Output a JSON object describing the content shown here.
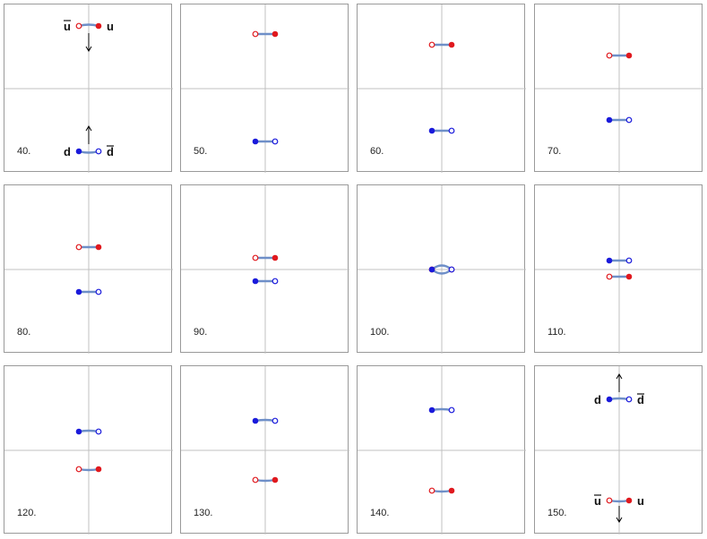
{
  "panels": [
    {
      "frame": "40.",
      "u_y": -70,
      "d_y": 70,
      "show_flavor_labels": true,
      "arrows": "in"
    },
    {
      "frame": "50.",
      "u_y": -61,
      "d_y": 59
    },
    {
      "frame": "60.",
      "u_y": -49,
      "d_y": 47
    },
    {
      "frame": "70.",
      "u_y": -37,
      "d_y": 35
    },
    {
      "frame": "80.",
      "u_y": -25,
      "d_y": 25
    },
    {
      "frame": "90.",
      "u_y": -13,
      "d_y": 13
    },
    {
      "frame": "100.",
      "u_y": 0,
      "d_y": 0,
      "merged": true
    },
    {
      "frame": "110.",
      "u_y": 8,
      "d_y": -10
    },
    {
      "frame": "120.",
      "u_y": 21,
      "d_y": -21
    },
    {
      "frame": "130.",
      "u_y": 33,
      "d_y": -33
    },
    {
      "frame": "140.",
      "u_y": 45,
      "d_y": -45
    },
    {
      "frame": "150.",
      "u_y": 56,
      "d_y": -57,
      "show_flavor_labels": true,
      "arrows": "out"
    }
  ],
  "labels": {
    "u": "u",
    "u_bar": "u",
    "d": "d",
    "d_bar": "d"
  },
  "colors": {
    "up_quark": "#e0191e",
    "down_quark": "#1a1adb",
    "string": "#6e8fc8",
    "axis": "#c0c0c0",
    "border": "#9a9a9a"
  }
}
